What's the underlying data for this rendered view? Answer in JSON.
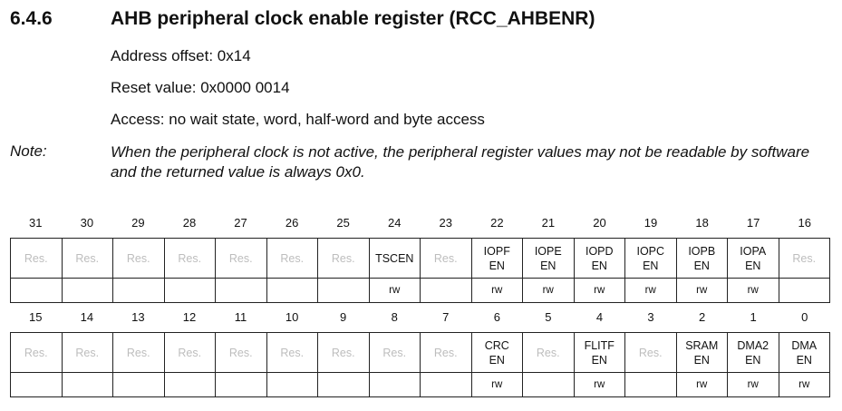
{
  "section": {
    "number": "6.4.6",
    "title": "AHB peripheral clock enable register (RCC_AHBENR)"
  },
  "address_offset": "Address offset: 0x14",
  "reset_value": "Reset value: 0x0000 0014",
  "access": "Access: no wait state, word, half-word and byte access",
  "note": {
    "label": "Note:",
    "text": "When the peripheral clock is not active, the peripheral register values may not be readable by software and the returned value is always 0x0."
  },
  "upper": {
    "bits": [
      "31",
      "30",
      "29",
      "28",
      "27",
      "26",
      "25",
      "24",
      "23",
      "22",
      "21",
      "20",
      "19",
      "18",
      "17",
      "16"
    ],
    "names": [
      [
        "Res."
      ],
      [
        "Res."
      ],
      [
        "Res."
      ],
      [
        "Res."
      ],
      [
        "Res."
      ],
      [
        "Res."
      ],
      [
        "Res."
      ],
      [
        "TSCEN"
      ],
      [
        "Res."
      ],
      [
        "IOPF",
        "EN"
      ],
      [
        "IOPE",
        "EN"
      ],
      [
        "IOPD",
        "EN"
      ],
      [
        "IOPC",
        "EN"
      ],
      [
        "IOPB",
        "EN"
      ],
      [
        "IOPA",
        "EN"
      ],
      [
        "Res."
      ]
    ],
    "access": [
      "",
      "",
      "",
      "",
      "",
      "",
      "",
      "rw",
      "",
      "rw",
      "rw",
      "rw",
      "rw",
      "rw",
      "rw",
      ""
    ]
  },
  "lower": {
    "bits": [
      "15",
      "14",
      "13",
      "12",
      "11",
      "10",
      "9",
      "8",
      "7",
      "6",
      "5",
      "4",
      "3",
      "2",
      "1",
      "0"
    ],
    "names": [
      [
        "Res."
      ],
      [
        "Res."
      ],
      [
        "Res."
      ],
      [
        "Res."
      ],
      [
        "Res."
      ],
      [
        "Res."
      ],
      [
        "Res."
      ],
      [
        "Res."
      ],
      [
        "Res."
      ],
      [
        "CRC",
        "EN"
      ],
      [
        "Res."
      ],
      [
        "FLITF",
        "EN"
      ],
      [
        "Res."
      ],
      [
        "SRAM",
        "EN"
      ],
      [
        "DMA2",
        "EN"
      ],
      [
        "DMA",
        "EN"
      ]
    ],
    "access": [
      "",
      "",
      "",
      "",
      "",
      "",
      "",
      "",
      "",
      "rw",
      "",
      "rw",
      "",
      "rw",
      "rw",
      "rw"
    ]
  }
}
